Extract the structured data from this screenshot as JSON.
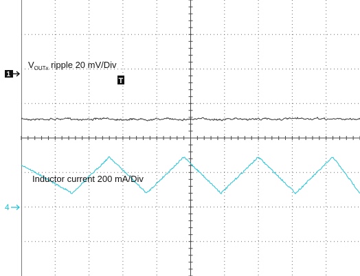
{
  "chart_data": {
    "type": "line",
    "title": "",
    "xlabel": "",
    "ylabel": "",
    "grid": true,
    "grid_divisions": {
      "x": 10,
      "y": 8
    },
    "channels": [
      {
        "id": "1",
        "marker": "1",
        "label_main": "V",
        "label_sub": "OUTx",
        "label_rest": " ripple 20 mV/Div",
        "scale": "20 mV/Div",
        "waveform": "ripple",
        "ground_div": 3.5,
        "mean_div_offset": -0.05,
        "noise_div": 0.04,
        "color": "#333333"
      },
      {
        "id": "4",
        "marker": "4",
        "label": "Inductor current 200 mA/Div",
        "scale": "200 mA/Div",
        "waveform": "triangle",
        "ground_div": 6.0,
        "peaks_div": [
          -0.4,
          2.6,
          4.8,
          7.0,
          9.2
        ],
        "troughs_div": [
          1.5,
          3.7,
          5.9,
          8.1,
          10.0
        ],
        "high_div": 4.55,
        "low_div": 5.6,
        "noise_div": 0.03,
        "color": "#1fc4d6"
      }
    ],
    "trigger_marker": {
      "label": "T",
      "x_div": 3.9
    }
  }
}
